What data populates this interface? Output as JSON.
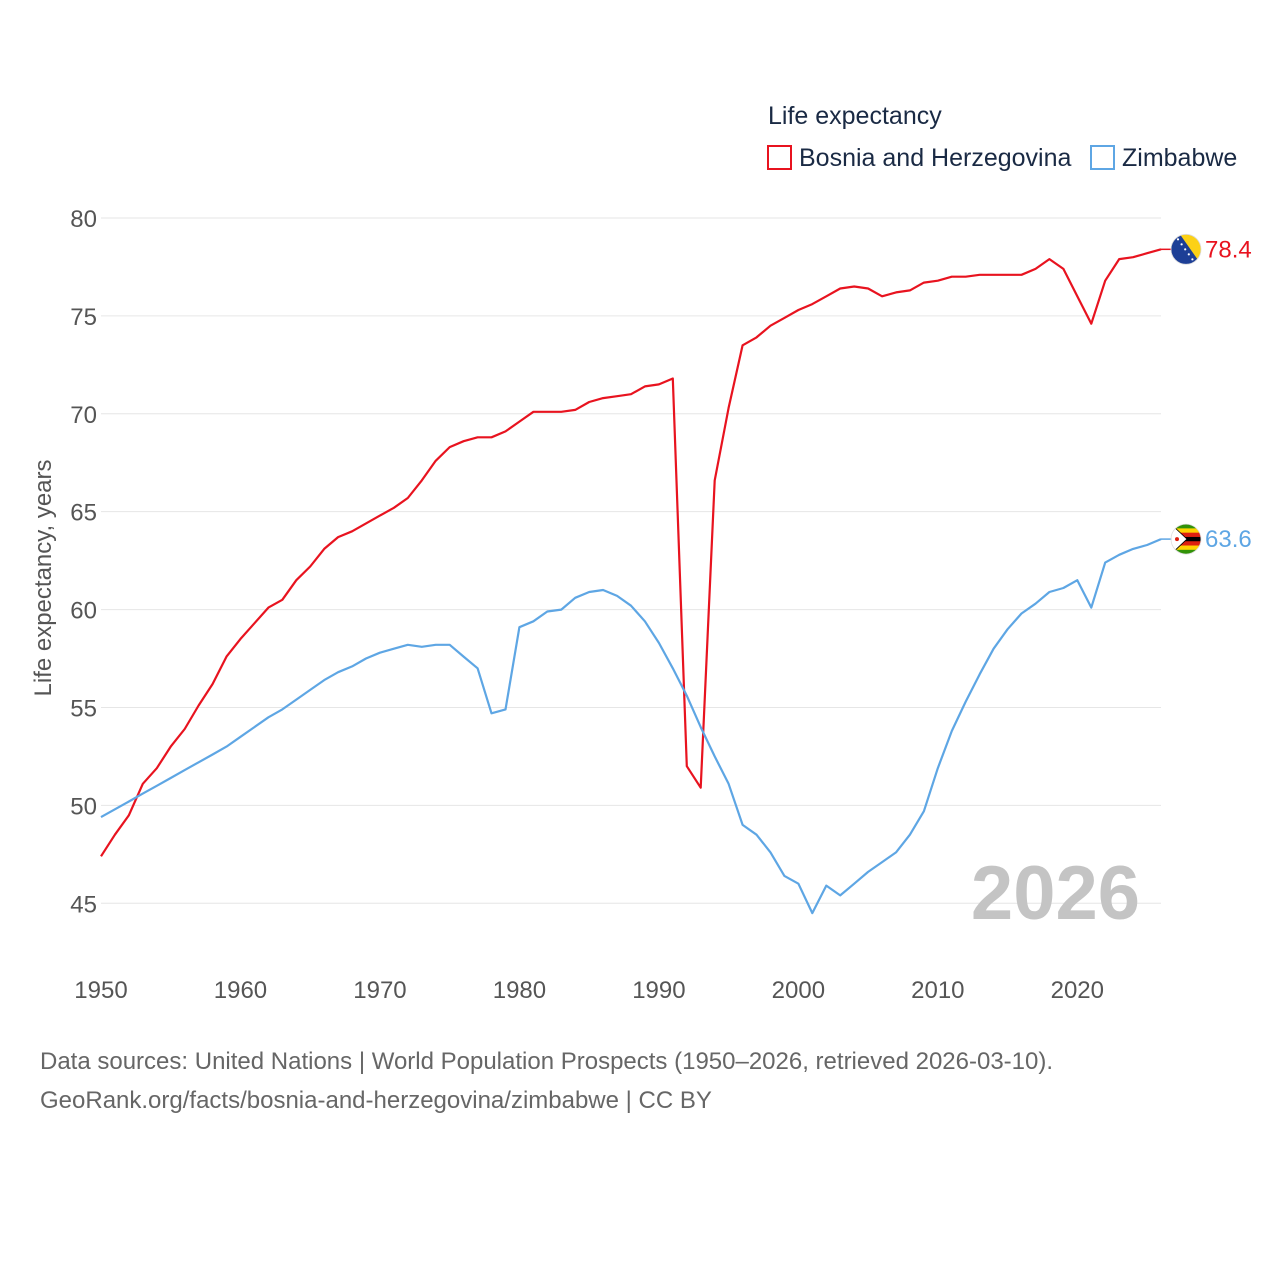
{
  "chart_data": {
    "type": "line",
    "legend_title": "Life expectancy",
    "ylabel": "Life expectancy, years",
    "xlabel": "",
    "watermark_year": "2026",
    "xlim": [
      1950,
      2026
    ],
    "ylim": [
      42,
      80
    ],
    "yticks": [
      80,
      75,
      70,
      65,
      60,
      55,
      50,
      45
    ],
    "xticks": [
      1950,
      1960,
      1970,
      1980,
      1990,
      2000,
      2010,
      2020
    ],
    "legend_position": "top-right",
    "grid": true,
    "x": [
      1950,
      1951,
      1952,
      1953,
      1954,
      1955,
      1956,
      1957,
      1958,
      1959,
      1960,
      1961,
      1962,
      1963,
      1964,
      1965,
      1966,
      1967,
      1968,
      1969,
      1970,
      1971,
      1972,
      1973,
      1974,
      1975,
      1976,
      1977,
      1978,
      1979,
      1980,
      1981,
      1982,
      1983,
      1984,
      1985,
      1986,
      1987,
      1988,
      1989,
      1990,
      1991,
      1992,
      1993,
      1994,
      1995,
      1996,
      1997,
      1998,
      1999,
      2000,
      2001,
      2002,
      2003,
      2004,
      2005,
      2006,
      2007,
      2008,
      2009,
      2010,
      2011,
      2012,
      2013,
      2014,
      2015,
      2016,
      2017,
      2018,
      2019,
      2020,
      2021,
      2022,
      2023,
      2024,
      2025,
      2026
    ],
    "series": [
      {
        "name": "Bosnia and Herzegovina",
        "color": "#e8131f",
        "end_label": "78.4",
        "flag": "bosnia-flag-icon",
        "values": [
          47.4,
          48.5,
          49.5,
          51.1,
          51.9,
          53.0,
          53.9,
          55.1,
          56.2,
          57.6,
          58.5,
          59.3,
          60.1,
          60.5,
          61.5,
          62.2,
          63.1,
          63.7,
          64.0,
          64.4,
          64.8,
          65.2,
          65.7,
          66.6,
          67.6,
          68.3,
          68.6,
          68.8,
          68.8,
          69.1,
          69.6,
          70.1,
          70.1,
          70.1,
          70.2,
          70.6,
          70.8,
          70.9,
          71.0,
          71.4,
          71.5,
          71.8,
          52.0,
          50.9,
          66.6,
          70.3,
          73.5,
          73.9,
          74.5,
          74.9,
          75.3,
          75.6,
          76.0,
          76.4,
          76.5,
          76.4,
          76.0,
          76.2,
          76.3,
          76.7,
          76.8,
          77.0,
          77.0,
          77.1,
          77.1,
          77.1,
          77.1,
          77.4,
          77.9,
          77.4,
          76.0,
          74.6,
          76.8,
          77.9,
          78.0,
          78.2,
          78.4
        ]
      },
      {
        "name": "Zimbabwe",
        "color": "#5ea6e4",
        "end_label": "63.6",
        "flag": "zimbabwe-flag-icon",
        "values": [
          49.4,
          49.8,
          50.2,
          50.6,
          51.0,
          51.4,
          51.8,
          52.2,
          52.6,
          53.0,
          53.5,
          54.0,
          54.5,
          54.9,
          55.4,
          55.9,
          56.4,
          56.8,
          57.1,
          57.5,
          57.8,
          58.0,
          58.2,
          58.1,
          58.2,
          58.2,
          57.6,
          57.0,
          54.7,
          54.9,
          59.1,
          59.4,
          59.9,
          60.0,
          60.6,
          60.9,
          61.0,
          60.7,
          60.2,
          59.4,
          58.3,
          57.0,
          55.6,
          54.0,
          52.5,
          51.1,
          49.0,
          48.5,
          47.6,
          46.4,
          46.0,
          44.5,
          45.9,
          45.4,
          46.0,
          46.6,
          47.1,
          47.6,
          48.5,
          49.7,
          51.9,
          53.8,
          55.3,
          56.7,
          58.0,
          59.0,
          59.8,
          60.3,
          60.9,
          61.1,
          61.5,
          60.1,
          62.4,
          62.8,
          63.1,
          63.3,
          63.6
        ]
      }
    ]
  },
  "source": {
    "line1": "Data sources: United Nations | World Population Prospects (1950–2026, retrieved 2026-03-10).",
    "line2": "GeoRank.org/facts/bosnia-and-herzegovina/zimbabwe | CC BY"
  }
}
